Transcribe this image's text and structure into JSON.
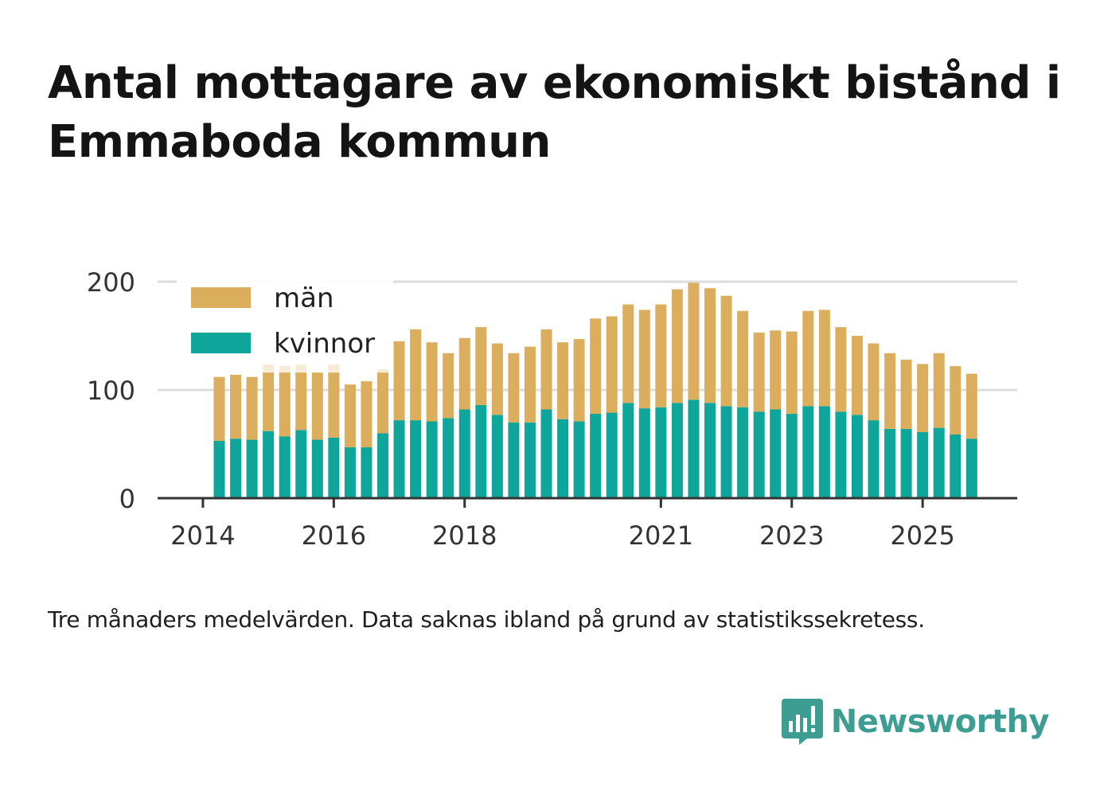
{
  "title": "Antal mottagare av ekonomiskt bistånd i Emmaboda kommun",
  "caption": "Tre månaders medelvärden. Data saknas ibland på grund av statistikssekretess.",
  "brand": {
    "name": "Newsworthy",
    "icon": "newsworthy-logo-icon"
  },
  "colors": {
    "man": "#dbae5d",
    "kvinnor": "#0ea59a",
    "grid": "#dddddd",
    "axis": "#333333"
  },
  "chart_data": {
    "type": "bar",
    "stacked": true,
    "ylim": [
      0,
      200
    ],
    "yticks": [
      0,
      100,
      200
    ],
    "xticks": [
      {
        "label": "2014",
        "index": -1
      },
      {
        "label": "2016",
        "index": 7
      },
      {
        "label": "2018",
        "index": 15
      },
      {
        "label": "2021",
        "index": 27
      },
      {
        "label": "2023",
        "index": 35
      },
      {
        "label": "2025",
        "index": 43
      }
    ],
    "legend": [
      "män",
      "kvinnor"
    ],
    "series": [
      {
        "name": "kvinnor",
        "values": [
          53,
          55,
          54,
          62,
          57,
          63,
          54,
          56,
          47,
          47,
          60,
          72,
          72,
          71,
          74,
          82,
          86,
          77,
          70,
          70,
          82,
          73,
          71,
          78,
          79,
          88,
          83,
          84,
          88,
          91,
          88,
          85,
          84,
          80,
          82,
          78,
          85,
          85,
          80,
          77,
          72,
          64,
          64,
          61,
          65,
          59,
          55
        ]
      },
      {
        "name": "män",
        "values": [
          59,
          59,
          58,
          54,
          59,
          53,
          62,
          60,
          58,
          61,
          56,
          73,
          84,
          73,
          60,
          66,
          72,
          66,
          64,
          70,
          74,
          71,
          76,
          88,
          89,
          91,
          91,
          95,
          105,
          108,
          106,
          102,
          89,
          73,
          73,
          76,
          88,
          89,
          78,
          73,
          71,
          70,
          64,
          63,
          69,
          63,
          60
        ]
      }
    ],
    "ghost_values": [
      {
        "index": 3,
        "value": 127
      },
      {
        "index": 4,
        "value": 122
      },
      {
        "index": 5,
        "value": 125
      },
      {
        "index": 7,
        "value": 125
      },
      {
        "index": 10,
        "value": 119
      }
    ]
  }
}
